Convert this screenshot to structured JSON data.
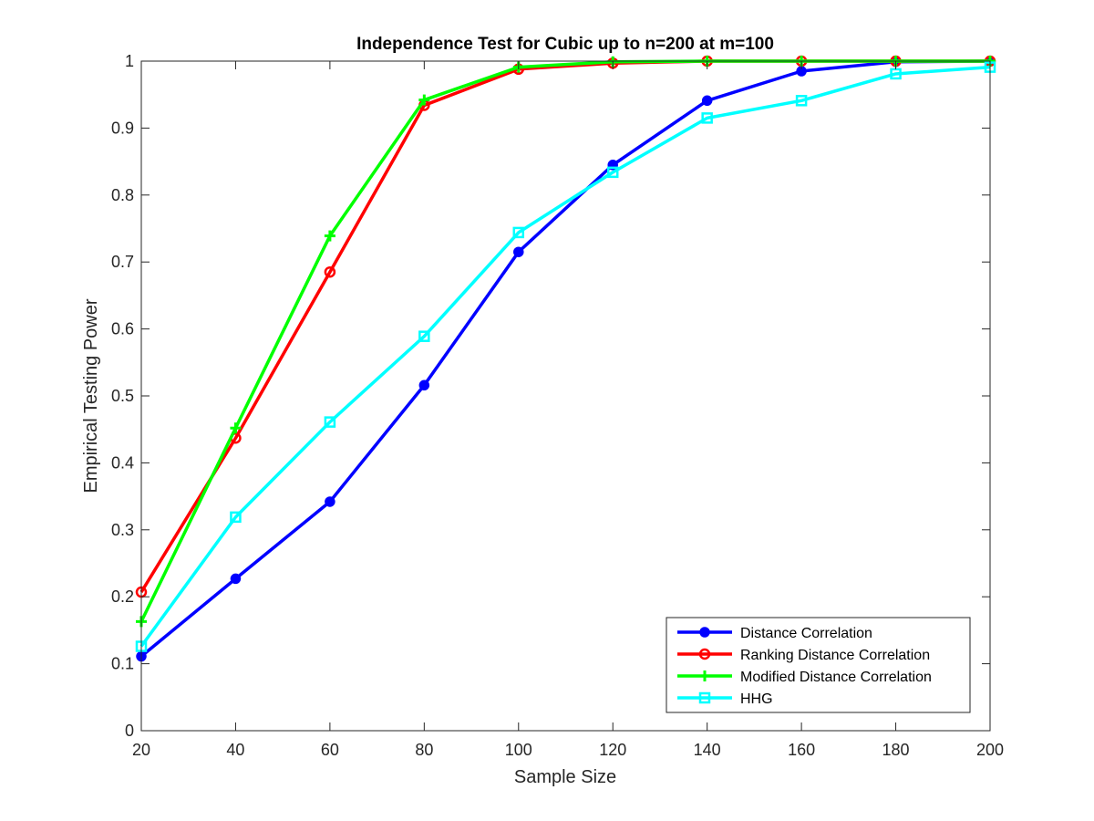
{
  "chart_data": {
    "type": "line",
    "title": "Independence Test for Cubic up to n=200 at m=100",
    "xlabel": "Sample Size",
    "ylabel": "Empirical Testing Power",
    "xlim": [
      20,
      200
    ],
    "ylim": [
      0,
      1
    ],
    "x": [
      20,
      40,
      60,
      80,
      100,
      120,
      140,
      160,
      180,
      200
    ],
    "x_ticks": [
      20,
      40,
      60,
      80,
      100,
      120,
      140,
      160,
      180,
      200
    ],
    "x_tick_labels": [
      "20",
      "40",
      "60",
      "80",
      "100",
      "120",
      "140",
      "160",
      "180",
      "200"
    ],
    "y_ticks": [
      0,
      0.1,
      0.2,
      0.3,
      0.4,
      0.5,
      0.6,
      0.7,
      0.8,
      0.9,
      1
    ],
    "y_tick_labels": [
      "0",
      "0.1",
      "0.2",
      "0.3",
      "0.4",
      "0.5",
      "0.6",
      "0.7",
      "0.8",
      "0.9",
      "1"
    ],
    "grid": false,
    "legend_position": "bottom-right",
    "series": [
      {
        "name": "Distance Correlation",
        "color": "#0000ff",
        "marker": "circle-filled",
        "values": [
          0.111,
          0.227,
          0.342,
          0.516,
          0.715,
          0.845,
          0.941,
          0.985,
          0.999,
          1.0
        ]
      },
      {
        "name": "Ranking Distance Correlation",
        "color": "#ff0000",
        "marker": "circle-open",
        "values": [
          0.207,
          0.437,
          0.685,
          0.934,
          0.988,
          0.997,
          1.0,
          1.0,
          1.0,
          1.0
        ]
      },
      {
        "name": "Modified Distance Correlation",
        "color": "#00ff00",
        "marker": "plus",
        "values": [
          0.163,
          0.452,
          0.739,
          0.942,
          0.991,
          0.999,
          1.0,
          1.0,
          1.0,
          1.0
        ]
      },
      {
        "name": "HHG",
        "color": "#00ffff",
        "marker": "square-open",
        "values": [
          0.126,
          0.319,
          0.461,
          0.589,
          0.744,
          0.834,
          0.915,
          0.941,
          0.981,
          0.991
        ]
      }
    ]
  }
}
